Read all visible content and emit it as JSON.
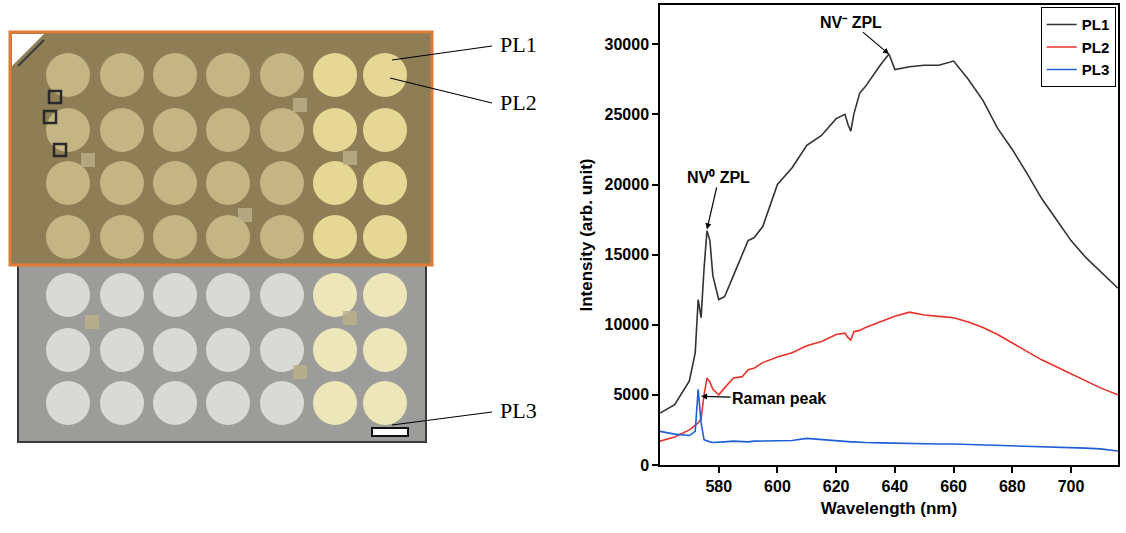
{
  "image": {
    "labels": [
      "PL1",
      "PL2",
      "PL3"
    ]
  },
  "chart_data": {
    "type": "line",
    "xlabel": "Wavelength (nm)",
    "ylabel": "Intensity (arb. unit)",
    "xlim": [
      560,
      716
    ],
    "ylim": [
      0,
      32800
    ],
    "xticks": [
      580,
      600,
      620,
      640,
      660,
      680,
      700
    ],
    "yticks": [
      0,
      5000,
      10000,
      15000,
      20000,
      25000,
      30000
    ],
    "grid": false,
    "legend": "upper right",
    "x": [
      560,
      565,
      570,
      572,
      573,
      574,
      575,
      576,
      577,
      578,
      580,
      582,
      585,
      588,
      590,
      592,
      595,
      600,
      605,
      610,
      615,
      620,
      623,
      624,
      625,
      626,
      628,
      630,
      635,
      638,
      640,
      645,
      650,
      655,
      660,
      665,
      670,
      675,
      680,
      685,
      690,
      695,
      700,
      705,
      710,
      716
    ],
    "series": [
      {
        "name": "PL1",
        "color": "#333333",
        "values": [
          3700,
          4300,
          6000,
          8000,
          11800,
          10500,
          14000,
          16700,
          16000,
          13500,
          11800,
          12000,
          13500,
          15000,
          16000,
          16200,
          17000,
          20000,
          21200,
          22800,
          23500,
          24700,
          25000,
          24300,
          23800,
          25000,
          26500,
          27000,
          28500,
          29300,
          28200,
          28400,
          28500,
          28500,
          28800,
          27500,
          26000,
          24000,
          22500,
          20800,
          19000,
          17500,
          16000,
          14800,
          13800,
          12600
        ]
      },
      {
        "name": "PL2",
        "color": "#e8322a",
        "values": [
          1700,
          2000,
          2500,
          2800,
          3000,
          3300,
          5000,
          6200,
          5900,
          5400,
          5000,
          5500,
          6200,
          6300,
          6800,
          6900,
          7300,
          7700,
          8000,
          8500,
          8800,
          9300,
          9400,
          9100,
          8900,
          9500,
          9600,
          9800,
          10200,
          10400,
          10600,
          10900,
          10700,
          10600,
          10500,
          10200,
          9800,
          9300,
          8700,
          8100,
          7500,
          7000,
          6500,
          6000,
          5500,
          5000
        ]
      },
      {
        "name": "PL3",
        "color": "#1f5fd6",
        "values": [
          2400,
          2200,
          2100,
          2400,
          5400,
          3000,
          1800,
          1700,
          1650,
          1600,
          1600,
          1650,
          1700,
          1650,
          1650,
          1700,
          1700,
          1750,
          1750,
          1900,
          1800,
          1700,
          1650,
          1650,
          1650,
          1650,
          1600,
          1600,
          1580,
          1560,
          1550,
          1520,
          1500,
          1500,
          1500,
          1470,
          1450,
          1420,
          1400,
          1350,
          1300,
          1280,
          1250,
          1200,
          1150,
          1000
        ]
      }
    ],
    "annotations": [
      {
        "text": "NV⁻ ZPL",
        "x": 638,
        "y": 29300
      },
      {
        "text": "NV⁰ ZPL",
        "x": 576,
        "y": 16800
      },
      {
        "text": "Raman peak",
        "x": 574,
        "y": 4900
      }
    ]
  }
}
